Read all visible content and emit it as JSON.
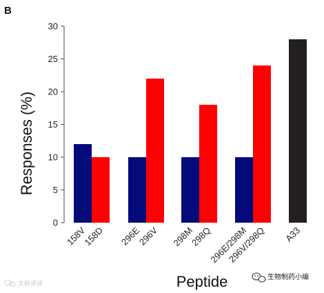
{
  "panel_label": "B",
  "chart_data": {
    "type": "bar",
    "categories": [
      "158V",
      "158D",
      "296E",
      "296V",
      "298M",
      "298Q",
      "296E/298M",
      "296V/298Q",
      "A33"
    ],
    "values": [
      12,
      10,
      10,
      22,
      10,
      18,
      10,
      24,
      28
    ],
    "colors": [
      "#050a7a",
      "#ff0000",
      "#050a7a",
      "#ff0000",
      "#050a7a",
      "#ff0000",
      "#050a7a",
      "#ff0000",
      "#231f20"
    ],
    "title": "",
    "xlabel": "Peptide",
    "ylabel": "Responses (%)",
    "ylim": [
      0,
      30
    ],
    "yticks": [
      "0",
      "5",
      "10",
      "15",
      "20",
      "25",
      "30"
    ],
    "grid": false
  },
  "watermarks": {
    "bottom_right": "生物制药小编",
    "bottom_left": "文献速递"
  }
}
